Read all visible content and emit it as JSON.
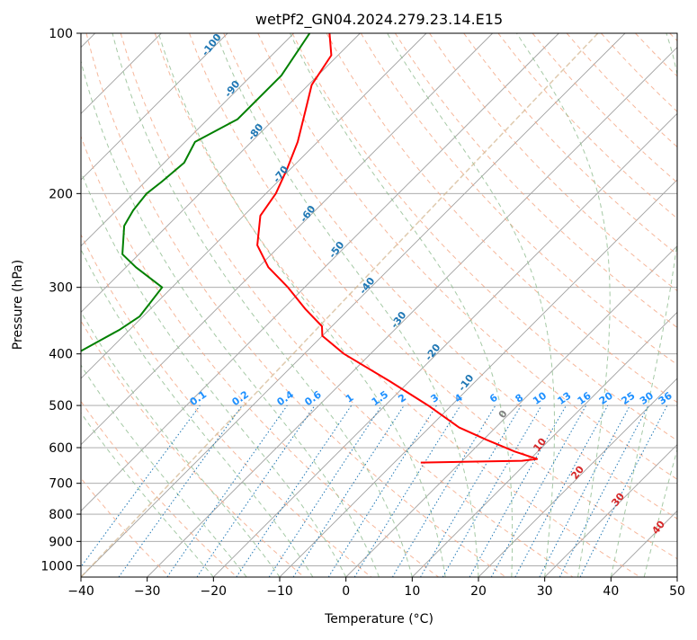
{
  "chart_data": {
    "type": "line",
    "subtype": "skew-t log-p",
    "title": "wetPf2_GN04.2024.279.23.14.E15",
    "xlabel": "Temperature (°C)",
    "ylabel": "Pressure (hPa)",
    "xlim": [
      -40,
      50
    ],
    "ylim": [
      1050,
      100
    ],
    "y_scale": "log",
    "grid": true,
    "x_ticks": [
      "−40",
      "−30",
      "−20",
      "−10",
      "0",
      "10",
      "20",
      "30",
      "40",
      "50"
    ],
    "y_ticks": [
      "100",
      "200",
      "300",
      "400",
      "500",
      "600",
      "700",
      "800",
      "900",
      "1000"
    ],
    "series": [
      {
        "name": "",
        "color": "#ff0000",
        "points": [
          {
            "p": 100,
            "t": -84.6
          },
          {
            "p": 110,
            "t": -81.0
          },
          {
            "p": 125,
            "t": -79.5
          },
          {
            "p": 140,
            "t": -76.5
          },
          {
            "p": 160,
            "t": -73.0
          },
          {
            "p": 180,
            "t": -70.5
          },
          {
            "p": 200,
            "t": -68.5
          },
          {
            "p": 220,
            "t": -67.5
          },
          {
            "p": 250,
            "t": -63.5
          },
          {
            "p": 275,
            "t": -58.5
          },
          {
            "p": 300,
            "t": -52.5
          },
          {
            "p": 330,
            "t": -46.5
          },
          {
            "p": 355,
            "t": -41.5
          },
          {
            "p": 370,
            "t": -40.0
          },
          {
            "p": 400,
            "t": -34.0
          },
          {
            "p": 450,
            "t": -23.0
          },
          {
            "p": 500,
            "t": -13.5
          },
          {
            "p": 550,
            "t": -5.5
          },
          {
            "p": 580,
            "t": 0.5
          },
          {
            "p": 610,
            "t": 6.5
          },
          {
            "p": 630,
            "t": 11.0
          },
          {
            "p": 635,
            "t": 9.0
          },
          {
            "p": 640,
            "t": -6.0
          }
        ]
      },
      {
        "name": "",
        "color": "#008000",
        "points": [
          {
            "p": 100,
            "t": -87.6
          },
          {
            "p": 120,
            "t": -85.5
          },
          {
            "p": 145,
            "t": -85.5
          },
          {
            "p": 160,
            "t": -88.5
          },
          {
            "p": 175,
            "t": -87.0
          },
          {
            "p": 190,
            "t": -87.5
          },
          {
            "p": 200,
            "t": -88.0
          },
          {
            "p": 215,
            "t": -87.5
          },
          {
            "p": 230,
            "t": -86.5
          },
          {
            "p": 260,
            "t": -82.5
          },
          {
            "p": 275,
            "t": -78.5
          },
          {
            "p": 300,
            "t": -71.5
          },
          {
            "p": 340,
            "t": -70.5
          },
          {
            "p": 360,
            "t": -71.5
          },
          {
            "p": 400,
            "t": -74.5
          },
          {
            "p": 440,
            "t": -76.5
          },
          {
            "p": 460,
            "t": -83.5
          },
          {
            "p": 470,
            "t": -110.0
          },
          {
            "p": 480,
            "t": -128.0
          },
          {
            "p": 500,
            "t": -131.0
          },
          {
            "p": 530,
            "t": -134.0
          }
        ]
      }
    ],
    "dry_adiabat_labels": [
      "-100",
      "-90",
      "-80",
      "-70",
      "-60",
      "-50",
      "-40",
      "-30",
      "-20",
      "-10",
      "0",
      "10",
      "20",
      "30",
      "40"
    ],
    "mixing_ratio_labels": [
      "0.1",
      "0.2",
      "0.4",
      "0.6",
      "1",
      "1.5",
      "2",
      "3",
      "4",
      "6",
      "8",
      "10",
      "13",
      "16",
      "20",
      "25",
      "30",
      "36"
    ],
    "colors": {
      "temperature": "#ff0000",
      "dewpoint": "#008000",
      "dry_adiabat_label": "#1f77b4",
      "moist_adiabat_label": "#d62728",
      "mixing_ratio_label": "#1e90ff",
      "mixing_ratio_line": "#1f77b4",
      "dry_adiabat_line": "#f4a582",
      "moist_adiabat_line": "#8fbc8f",
      "isotherm": "#a0a0a0",
      "isobar": "#a0a0a0",
      "zero_isotherm": "#d2b48c"
    }
  }
}
